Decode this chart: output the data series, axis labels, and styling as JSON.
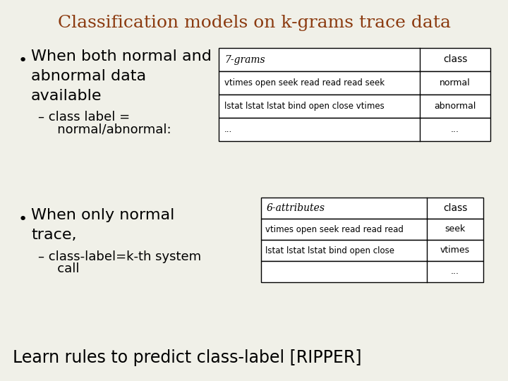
{
  "title": "Classification models on k-grams trace data",
  "title_color": "#8B3A0F",
  "bg_color": "#F0F0E8",
  "table1_header": [
    "7-grams",
    "class"
  ],
  "table1_rows": [
    [
      "vtimes open seek read read read seek",
      "normal"
    ],
    [
      "lstat lstat lstat bind open close vtimes",
      "abnormal"
    ],
    [
      "...",
      "..."
    ]
  ],
  "table2_header": [
    "6-attributes",
    "class"
  ],
  "table2_rows": [
    [
      "vtimes open seek read read read",
      "seek"
    ],
    [
      "lstat lstat lstat bind open close",
      "vtimes"
    ],
    [
      "",
      "..."
    ]
  ],
  "bullet1_lines": [
    "When both normal and",
    "abnormal data",
    "available"
  ],
  "sub1_lines": [
    "– class label =",
    "   normal/abnormal:"
  ],
  "bullet2_lines": [
    "When only normal",
    "trace,"
  ],
  "sub2_lines": [
    "– class-label=k-th system",
    "   call"
  ],
  "footer": "Learn rules to predict class-label [RIPPER]"
}
